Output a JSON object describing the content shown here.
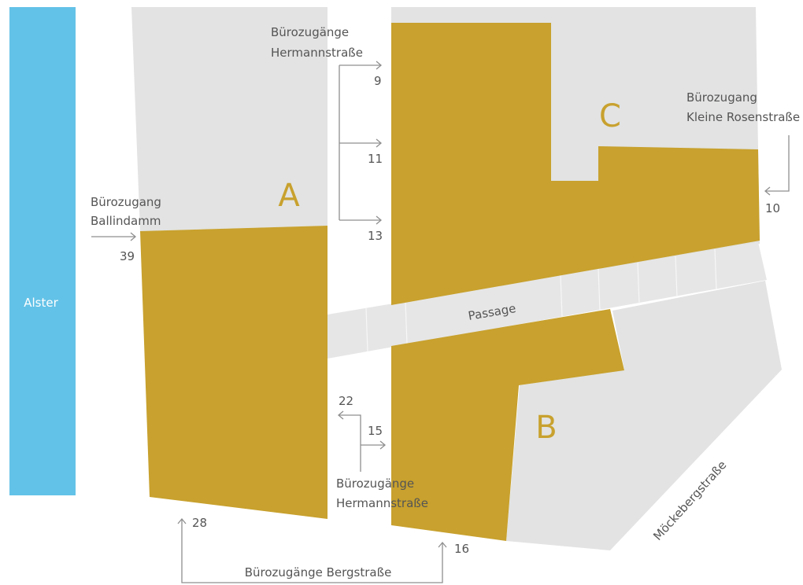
{
  "colors": {
    "building": "#c8a12e",
    "background_block": "#e2e3e2",
    "passage": "#e6e6e6",
    "water": "#63c2e7",
    "text": "#555555",
    "arrow": "#8f8f8f"
  },
  "water": {
    "label": "Alster"
  },
  "buildings": [
    {
      "id": "A",
      "label": "A"
    },
    {
      "id": "B",
      "label": "B"
    },
    {
      "id": "C",
      "label": "C"
    }
  ],
  "passage": {
    "label": "Passage"
  },
  "street": {
    "label": "Möckebergstraße"
  },
  "entrances": {
    "ballindamm": {
      "line1": "Bürozugang",
      "line2": "Ballindamm",
      "number": "39"
    },
    "hermann_top": {
      "line1": "Bürozugänge",
      "line2": "Hermannstraße",
      "numbers": [
        "9",
        "11",
        "13"
      ]
    },
    "kleine_rosen": {
      "line1": "Bürozugang",
      "line2": "Kleine Rosenstraße",
      "number": "10"
    },
    "hermann_bottom": {
      "line1": "Bürozugänge",
      "line2": "Hermannstraße",
      "numbers": [
        "22",
        "15"
      ]
    },
    "berg": {
      "label": "Bürozugänge Bergstraße",
      "numbers": [
        "28",
        "16"
      ]
    }
  }
}
